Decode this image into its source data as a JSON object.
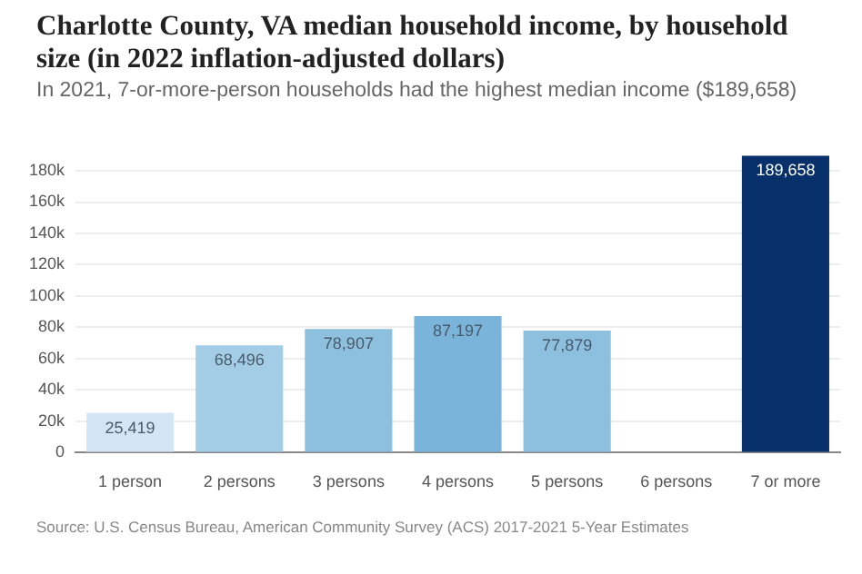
{
  "chart_data": {
    "type": "bar",
    "title": "Charlotte County, VA median household income, by household size (in 2022 inflation-adjusted dollars)",
    "subtitle": "In 2021, 7-or-more-person households had the highest median income ($189,658)",
    "categories": [
      "1 person",
      "2 persons",
      "3 persons",
      "4 persons",
      "5 persons",
      "6 persons",
      "7 or more"
    ],
    "values": [
      25419,
      68496,
      78907,
      87197,
      77879,
      null,
      189658
    ],
    "colors": [
      "#d4e6f5",
      "#a3cde6",
      "#8dbfdf",
      "#7ab4da",
      "#8dbfdf",
      "#8dbfdf",
      "#08306b"
    ],
    "value_labels": [
      "25,419",
      "68,496",
      "78,907",
      "87,197",
      "77,879",
      null,
      "189,658"
    ],
    "ylim": [
      0,
      190000
    ],
    "yticks": [
      0,
      {
        "value": 20000,
        "label": "20k"
      },
      {
        "value": 40000,
        "label": "40k"
      },
      {
        "value": 60000,
        "label": "60k"
      },
      {
        "value": 80000,
        "label": "80k"
      },
      {
        "value": 100000,
        "label": "100k"
      },
      {
        "value": 120000,
        "label": "120k"
      },
      {
        "value": 140000,
        "label": "140k"
      },
      {
        "value": 160000,
        "label": "160k"
      },
      {
        "value": 180000,
        "label": "180k"
      }
    ],
    "grid": "y",
    "legend": false,
    "annotations": [
      "Source: U.S. Census Bureau, American Community Survey (ACS) 2017-2021 5-Year Estimates"
    ]
  }
}
